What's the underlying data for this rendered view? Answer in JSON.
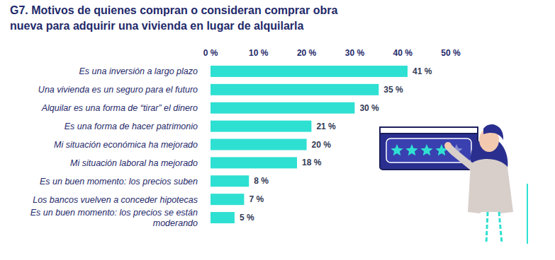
{
  "chart_data": {
    "type": "bar",
    "orientation": "horizontal",
    "title": "G7. Motivos de quienes compran o consideran comprar obra nueva para adquirir una vivienda en lugar de alquilarla",
    "categories": [
      "Es una inversión a largo plazo",
      "Una vivienda es un seguro para el futuro",
      "Alquilar es una forma de “tirar” el dinero",
      "Es una forma de hacer patrimonio",
      "Mi situación económica ha mejorado",
      "Mi situación laboral ha mejorado",
      "Es un buen momento: los precios suben",
      "Los bancos vuelven a conceder hipotecas",
      "Es un buen momento: los precios se están moderando"
    ],
    "values": [
      41,
      35,
      30,
      21,
      20,
      18,
      8,
      7,
      5
    ],
    "value_labels": [
      "41 %",
      "35 %",
      "30 %",
      "21 %",
      "20 %",
      "18 %",
      "8 %",
      "7 %",
      "5 %"
    ],
    "color": "#2ee0d2",
    "xlim": [
      0,
      50
    ],
    "xticks": [
      {
        "value": 0,
        "label": "0 %"
      },
      {
        "value": 10,
        "label": "10 %"
      },
      {
        "value": 20,
        "label": "20 %"
      },
      {
        "value": 30,
        "label": "30 %"
      },
      {
        "value": 40,
        "label": "40 %"
      },
      {
        "value": 50,
        "label": "50 %"
      }
    ],
    "grid": false,
    "data_labels": true
  }
}
